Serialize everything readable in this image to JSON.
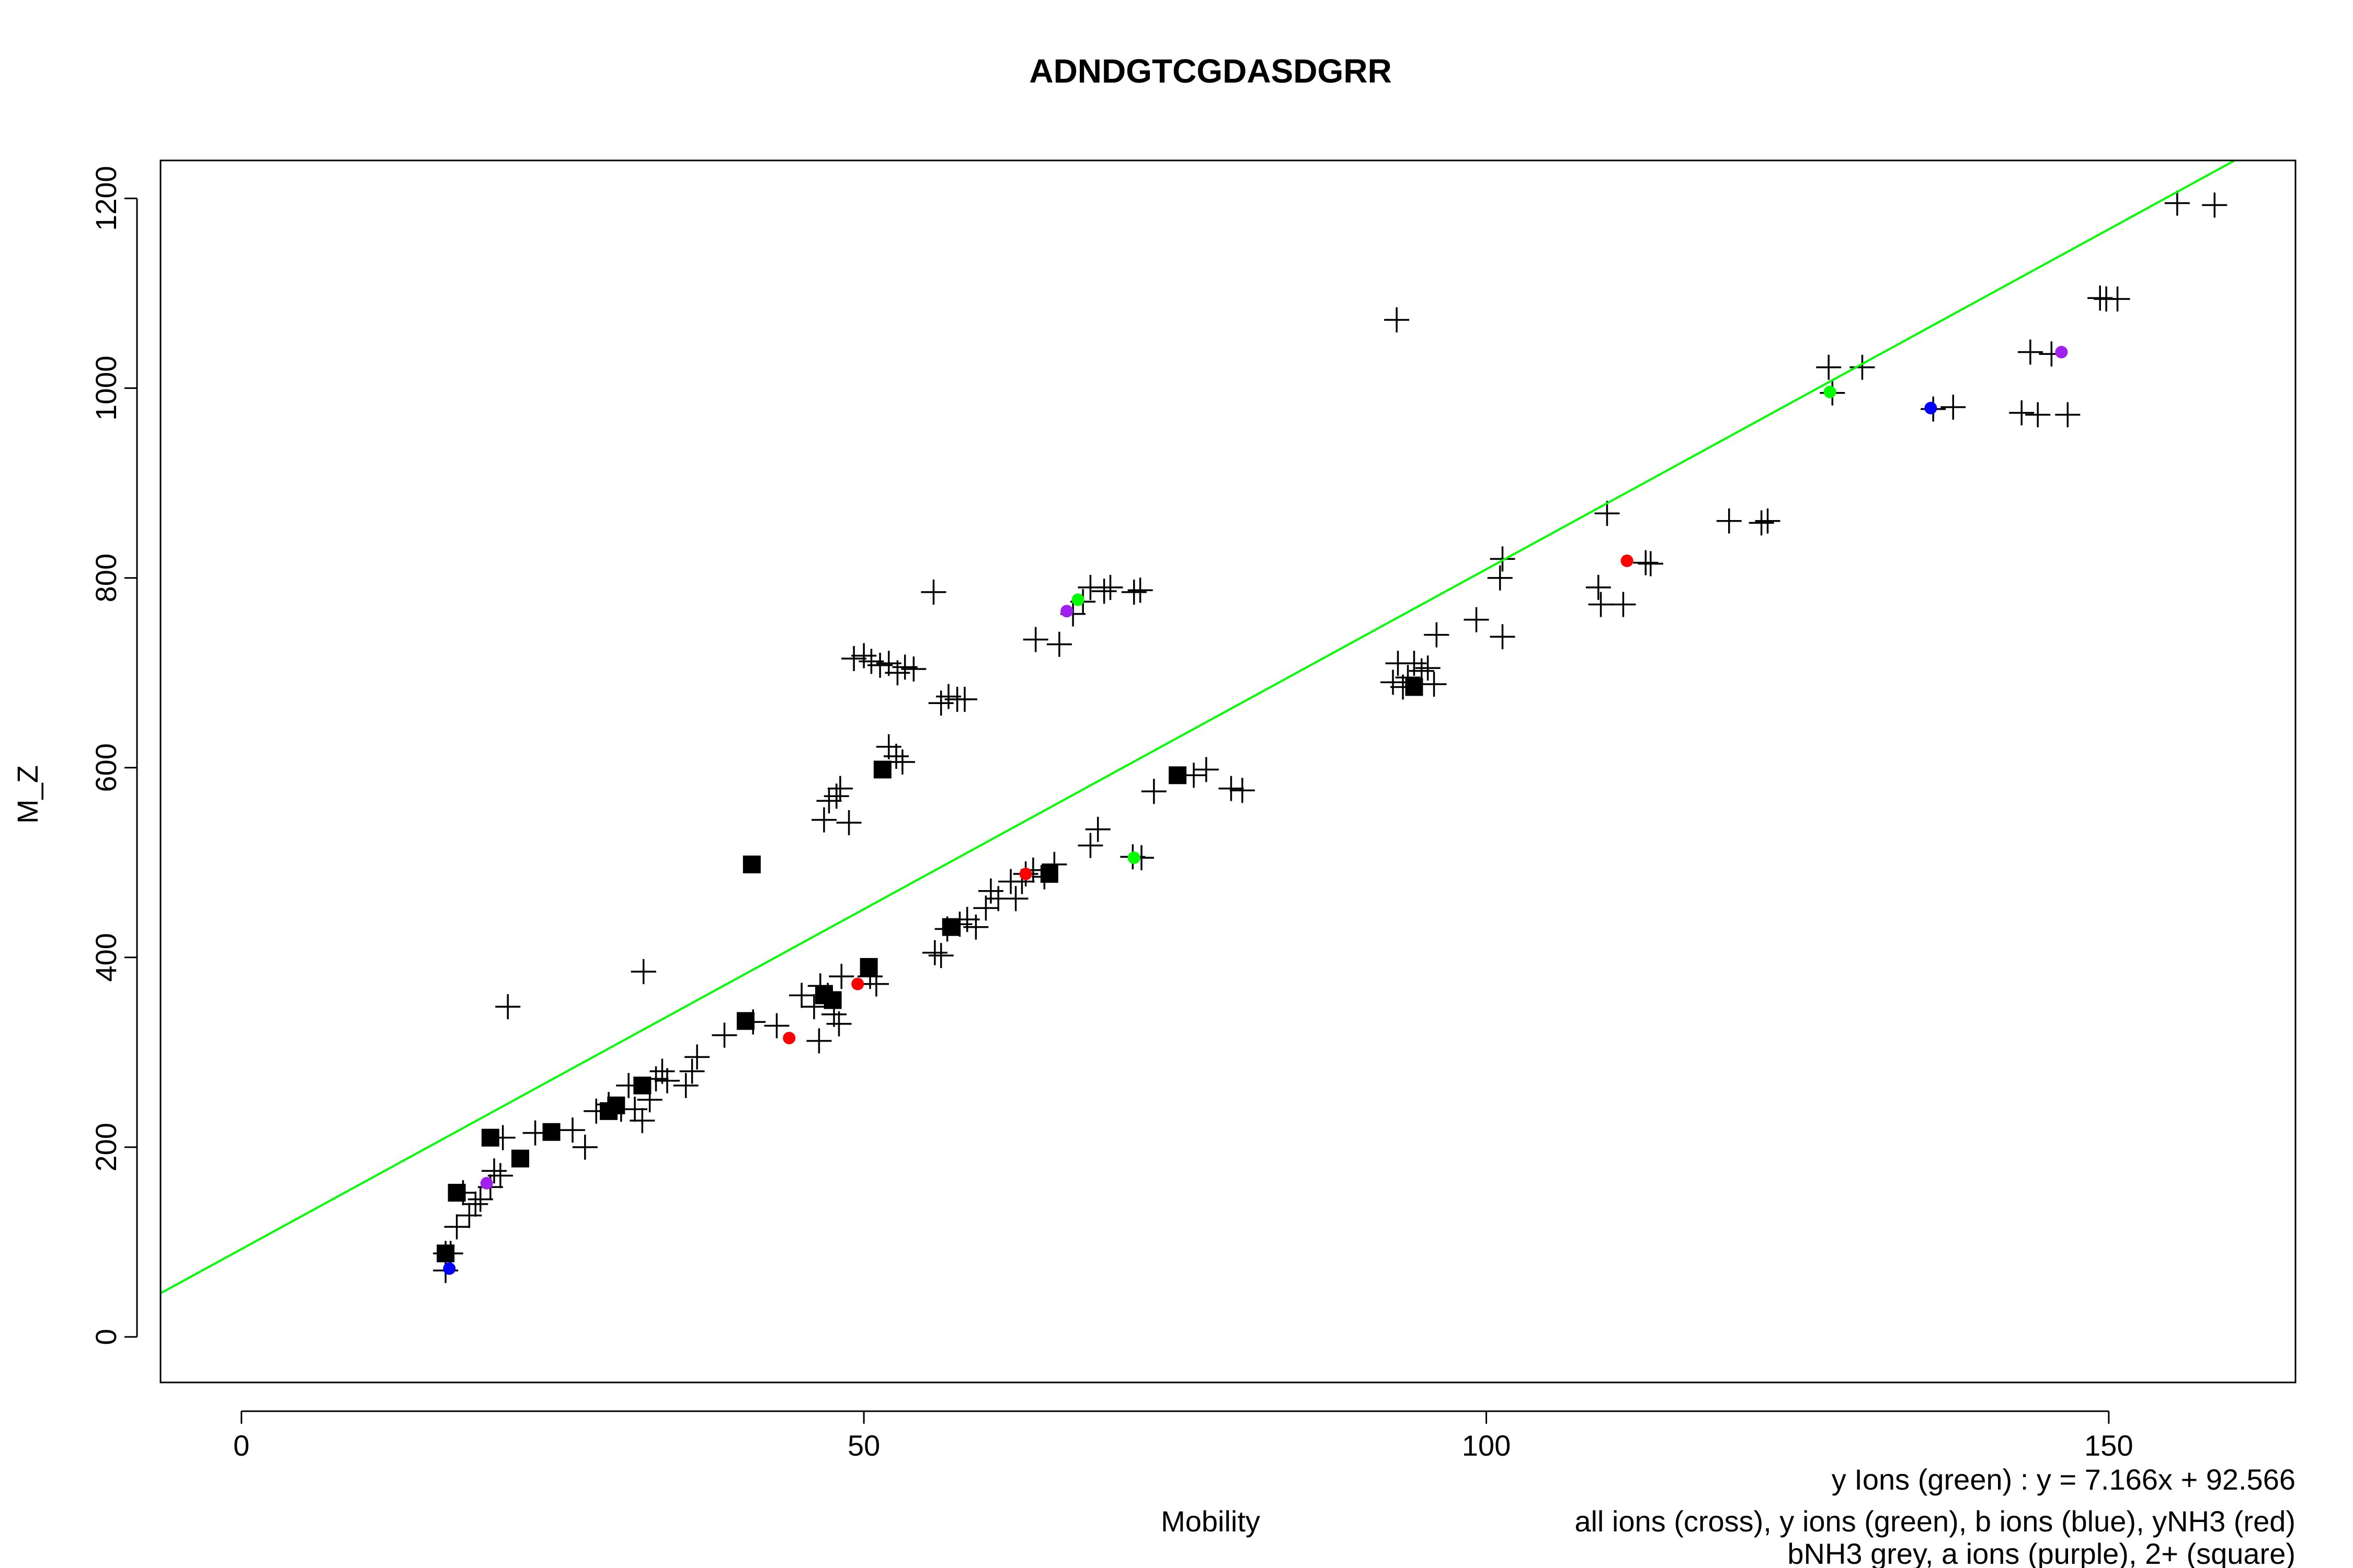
{
  "chart_data": {
    "type": "scatter",
    "title": "ADNDGTCGDASDGRR",
    "xlabel": "Mobility",
    "ylabel": "M_Z",
    "xlim": [
      -6.5,
      165
    ],
    "ylim": [
      -48,
      1240
    ],
    "xticks": [
      0,
      50,
      100,
      150
    ],
    "yticks": [
      0,
      200,
      400,
      600,
      800,
      1000,
      1200
    ],
    "grid": false,
    "fit_line": {
      "slope": 7.166,
      "intercept": 92.566,
      "color": "#00ff00"
    },
    "notes": [
      "y Ions (green) : y = 7.166x + 92.566",
      "all ions (cross), y ions (green), b ions (blue), yNH3 (red)",
      "bNH3 grey, a ions (purple), 2+ (square)"
    ],
    "series": [
      {
        "marker": "cross",
        "color": "#000000",
        "points": [
          [
            16.4,
            70
          ],
          [
            16.4,
            88
          ],
          [
            16.8,
            88
          ],
          [
            17.3,
            116
          ],
          [
            17.8,
            152
          ],
          [
            18.3,
            128
          ],
          [
            18.8,
            140
          ],
          [
            19.2,
            145
          ],
          [
            20.0,
            158
          ],
          [
            20.3,
            175
          ],
          [
            20.8,
            170
          ],
          [
            21.0,
            210
          ],
          [
            21.4,
            348
          ],
          [
            23.6,
            215
          ],
          [
            26.6,
            218
          ],
          [
            27.6,
            200
          ],
          [
            28.5,
            238
          ],
          [
            29.5,
            245
          ],
          [
            30.5,
            240
          ],
          [
            31.1,
            265
          ],
          [
            31.6,
            240
          ],
          [
            32.2,
            228
          ],
          [
            32.8,
            250
          ],
          [
            33.3,
            272
          ],
          [
            33.8,
            280
          ],
          [
            34.2,
            270
          ],
          [
            35.7,
            265
          ],
          [
            36.2,
            280
          ],
          [
            36.6,
            295
          ],
          [
            38.8,
            318
          ],
          [
            32.3,
            385
          ],
          [
            41.1,
            332
          ],
          [
            43.0,
            328
          ],
          [
            45.0,
            360
          ],
          [
            46.0,
            348
          ],
          [
            46.5,
            370
          ],
          [
            46.4,
            312
          ],
          [
            47.1,
            360
          ],
          [
            47.6,
            340
          ],
          [
            48.0,
            330
          ],
          [
            48.2,
            380
          ],
          [
            50.5,
            380
          ],
          [
            51.0,
            372
          ],
          [
            46.8,
            545
          ],
          [
            47.2,
            565
          ],
          [
            47.8,
            570
          ],
          [
            48.1,
            578
          ],
          [
            48.8,
            542
          ],
          [
            49.2,
            715
          ],
          [
            50.0,
            718
          ],
          [
            50.6,
            712
          ],
          [
            51.3,
            708
          ],
          [
            52.0,
            710
          ],
          [
            52.7,
            700
          ],
          [
            53.3,
            706
          ],
          [
            54.0,
            704
          ],
          [
            52.0,
            622
          ],
          [
            52.6,
            612
          ],
          [
            53.1,
            606
          ],
          [
            55.6,
            785
          ],
          [
            55.7,
            405
          ],
          [
            56.2,
            402
          ],
          [
            56.7,
            430
          ],
          [
            57.7,
            435
          ],
          [
            58.3,
            440
          ],
          [
            59.0,
            432
          ],
          [
            59.8,
            452
          ],
          [
            60.2,
            470
          ],
          [
            60.8,
            462
          ],
          [
            61.8,
            480
          ],
          [
            62.2,
            462
          ],
          [
            62.7,
            480
          ],
          [
            63.0,
            488
          ],
          [
            63.6,
            492
          ],
          [
            64.5,
            485
          ],
          [
            65.3,
            498
          ],
          [
            56.2,
            668
          ],
          [
            56.8,
            675
          ],
          [
            57.5,
            672
          ],
          [
            58.1,
            672
          ],
          [
            63.8,
            735
          ],
          [
            65.7,
            730
          ],
          [
            66.8,
            762
          ],
          [
            67.6,
            775
          ],
          [
            68.2,
            790
          ],
          [
            69.3,
            786
          ],
          [
            69.8,
            790
          ],
          [
            71.7,
            785
          ],
          [
            72.2,
            787
          ],
          [
            68.2,
            518
          ],
          [
            68.8,
            535
          ],
          [
            71.6,
            506
          ],
          [
            72.3,
            505
          ],
          [
            73.3,
            575
          ],
          [
            76.5,
            592
          ],
          [
            77.5,
            598
          ],
          [
            79.5,
            578
          ],
          [
            80.4,
            576
          ],
          [
            92.5,
            690
          ],
          [
            92.9,
            710
          ],
          [
            93.3,
            685
          ],
          [
            93.7,
            695
          ],
          [
            94.2,
            710
          ],
          [
            94.8,
            702
          ],
          [
            95.3,
            705
          ],
          [
            95.8,
            688
          ],
          [
            96.0,
            740
          ],
          [
            92.8,
            1072
          ],
          [
            99.2,
            756
          ],
          [
            101.1,
            800
          ],
          [
            101.3,
            820
          ],
          [
            101.3,
            738
          ],
          [
            109.0,
            790
          ],
          [
            109.2,
            772
          ],
          [
            109.7,
            868
          ],
          [
            111.0,
            772
          ],
          [
            112.8,
            816
          ],
          [
            113.2,
            815
          ],
          [
            119.5,
            860
          ],
          [
            122.1,
            858
          ],
          [
            122.6,
            860
          ],
          [
            127.5,
            1022
          ],
          [
            127.8,
            995
          ],
          [
            130.2,
            1022
          ],
          [
            135.9,
            978
          ],
          [
            137.5,
            980
          ],
          [
            143.0,
            974
          ],
          [
            143.7,
            1038
          ],
          [
            144.3,
            972
          ],
          [
            145.4,
            1036
          ],
          [
            146.7,
            972
          ],
          [
            149.3,
            1095
          ],
          [
            149.8,
            1094
          ],
          [
            150.7,
            1094
          ],
          [
            155.5,
            1195
          ],
          [
            158.5,
            1193
          ]
        ]
      },
      {
        "marker": "square",
        "color": "#000000",
        "points": [
          [
            16.4,
            88
          ],
          [
            17.3,
            152
          ],
          [
            20.0,
            210
          ],
          [
            22.4,
            188
          ],
          [
            24.9,
            216
          ],
          [
            29.5,
            238
          ],
          [
            30.1,
            244
          ],
          [
            32.2,
            265
          ],
          [
            40.5,
            333
          ],
          [
            41.0,
            498
          ],
          [
            46.8,
            360
          ],
          [
            47.5,
            355
          ],
          [
            50.4,
            390
          ],
          [
            51.5,
            598
          ],
          [
            57.0,
            432
          ],
          [
            64.9,
            488
          ],
          [
            75.2,
            592
          ],
          [
            94.2,
            685
          ]
        ]
      },
      {
        "marker": "dot",
        "color": "#00ff00",
        "points": [
          [
            67.2,
            777
          ],
          [
            71.7,
            505
          ],
          [
            127.6,
            996
          ]
        ]
      },
      {
        "marker": "dot",
        "color": "#0000ff",
        "points": [
          [
            16.7,
            72
          ],
          [
            135.7,
            979
          ]
        ]
      },
      {
        "marker": "dot",
        "color": "#ff0000",
        "points": [
          [
            44.0,
            315
          ],
          [
            49.5,
            372
          ],
          [
            63.0,
            488
          ],
          [
            111.3,
            818
          ]
        ]
      },
      {
        "marker": "dot",
        "color": "#a020f0",
        "points": [
          [
            19.7,
            162
          ],
          [
            66.3,
            765
          ],
          [
            146.2,
            1038
          ]
        ]
      }
    ]
  }
}
